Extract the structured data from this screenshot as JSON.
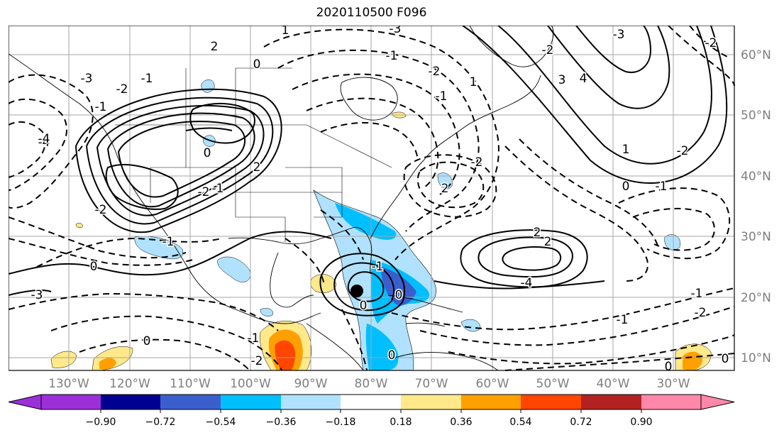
{
  "map": {
    "title": "2020110500 F096",
    "lon_labels": [
      "130°W",
      "120°W",
      "110°W",
      "100°W",
      "90°W",
      "80°W",
      "70°W",
      "60°W",
      "50°W",
      "40°W",
      "30°W"
    ],
    "lat_labels": [
      "60°N",
      "50°N",
      "40°N",
      "30°N",
      "20°N",
      "10°N"
    ],
    "contour_labels": [
      "-2",
      "1",
      "0",
      "-1",
      "-2",
      "-3",
      "-4",
      "2",
      "1",
      "-1",
      "-2",
      "-1",
      "0",
      "2",
      "3",
      "4",
      "-3",
      "-2",
      "2",
      "1",
      "0",
      "-1",
      "-2",
      "-2",
      "-1",
      "0",
      "-4",
      "-3",
      "-2",
      "2",
      "-1",
      "-2",
      "-1",
      "0",
      "-1",
      "-2",
      "0",
      "0",
      "-1",
      "0",
      "-1",
      "-2",
      "-1",
      "0",
      "2",
      "0",
      "-4",
      "-3"
    ],
    "marker": "storm-center-dot"
  },
  "colorbar": {
    "ticks": [
      "−0.90",
      "−0.72",
      "−0.54",
      "−0.36",
      "−0.18",
      "0.18",
      "0.36",
      "0.54",
      "0.72",
      "0.90"
    ],
    "colors": [
      "#9b30d9",
      "#000090",
      "#3a5fcd",
      "#00bfff",
      "#b0e2ff",
      "#ffffff",
      "#ffe98a",
      "#ffa000",
      "#ff4500",
      "#b22222",
      "#ff88aa"
    ]
  }
}
